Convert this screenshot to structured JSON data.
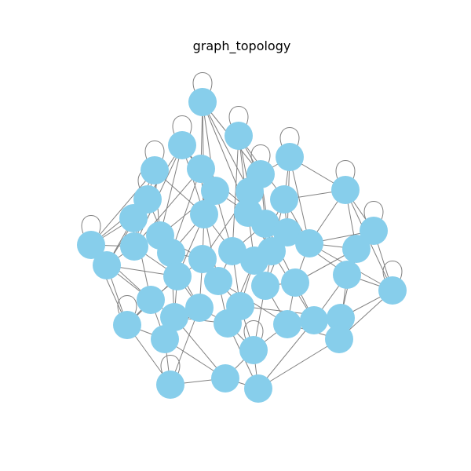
{
  "figure": {
    "title": "graph_topology"
  },
  "colors": {
    "node_fill": "#87CEEB",
    "edge_stroke": "#808080",
    "background": "#ffffff"
  }
}
